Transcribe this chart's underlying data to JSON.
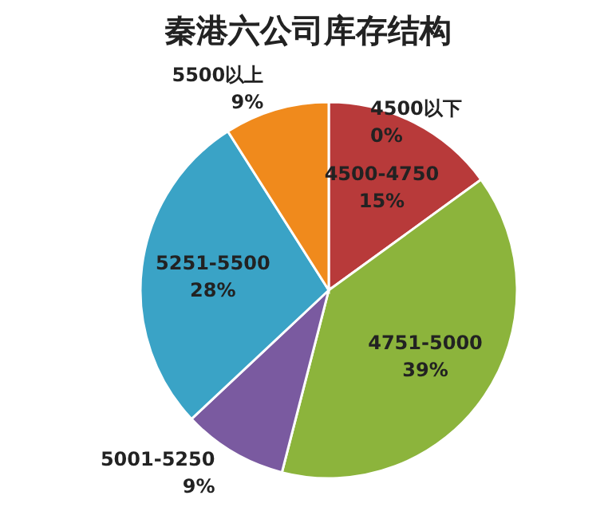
{
  "chart_data": {
    "type": "pie",
    "title": "秦港六公司库存结构",
    "categories": [
      "4500以下",
      "4500-4750",
      "4751-5000",
      "5001-5250",
      "5251-5500",
      "5500以上"
    ],
    "values": [
      0,
      15,
      39,
      9,
      28,
      9
    ],
    "value_labels": [
      "0%",
      "15%",
      "39%",
      "9%",
      "28%",
      "9%"
    ],
    "colors": [
      "#c0504d",
      "#b83a3a",
      "#8cb43c",
      "#7a5aa0",
      "#3aa3c6",
      "#f08a1c"
    ]
  }
}
